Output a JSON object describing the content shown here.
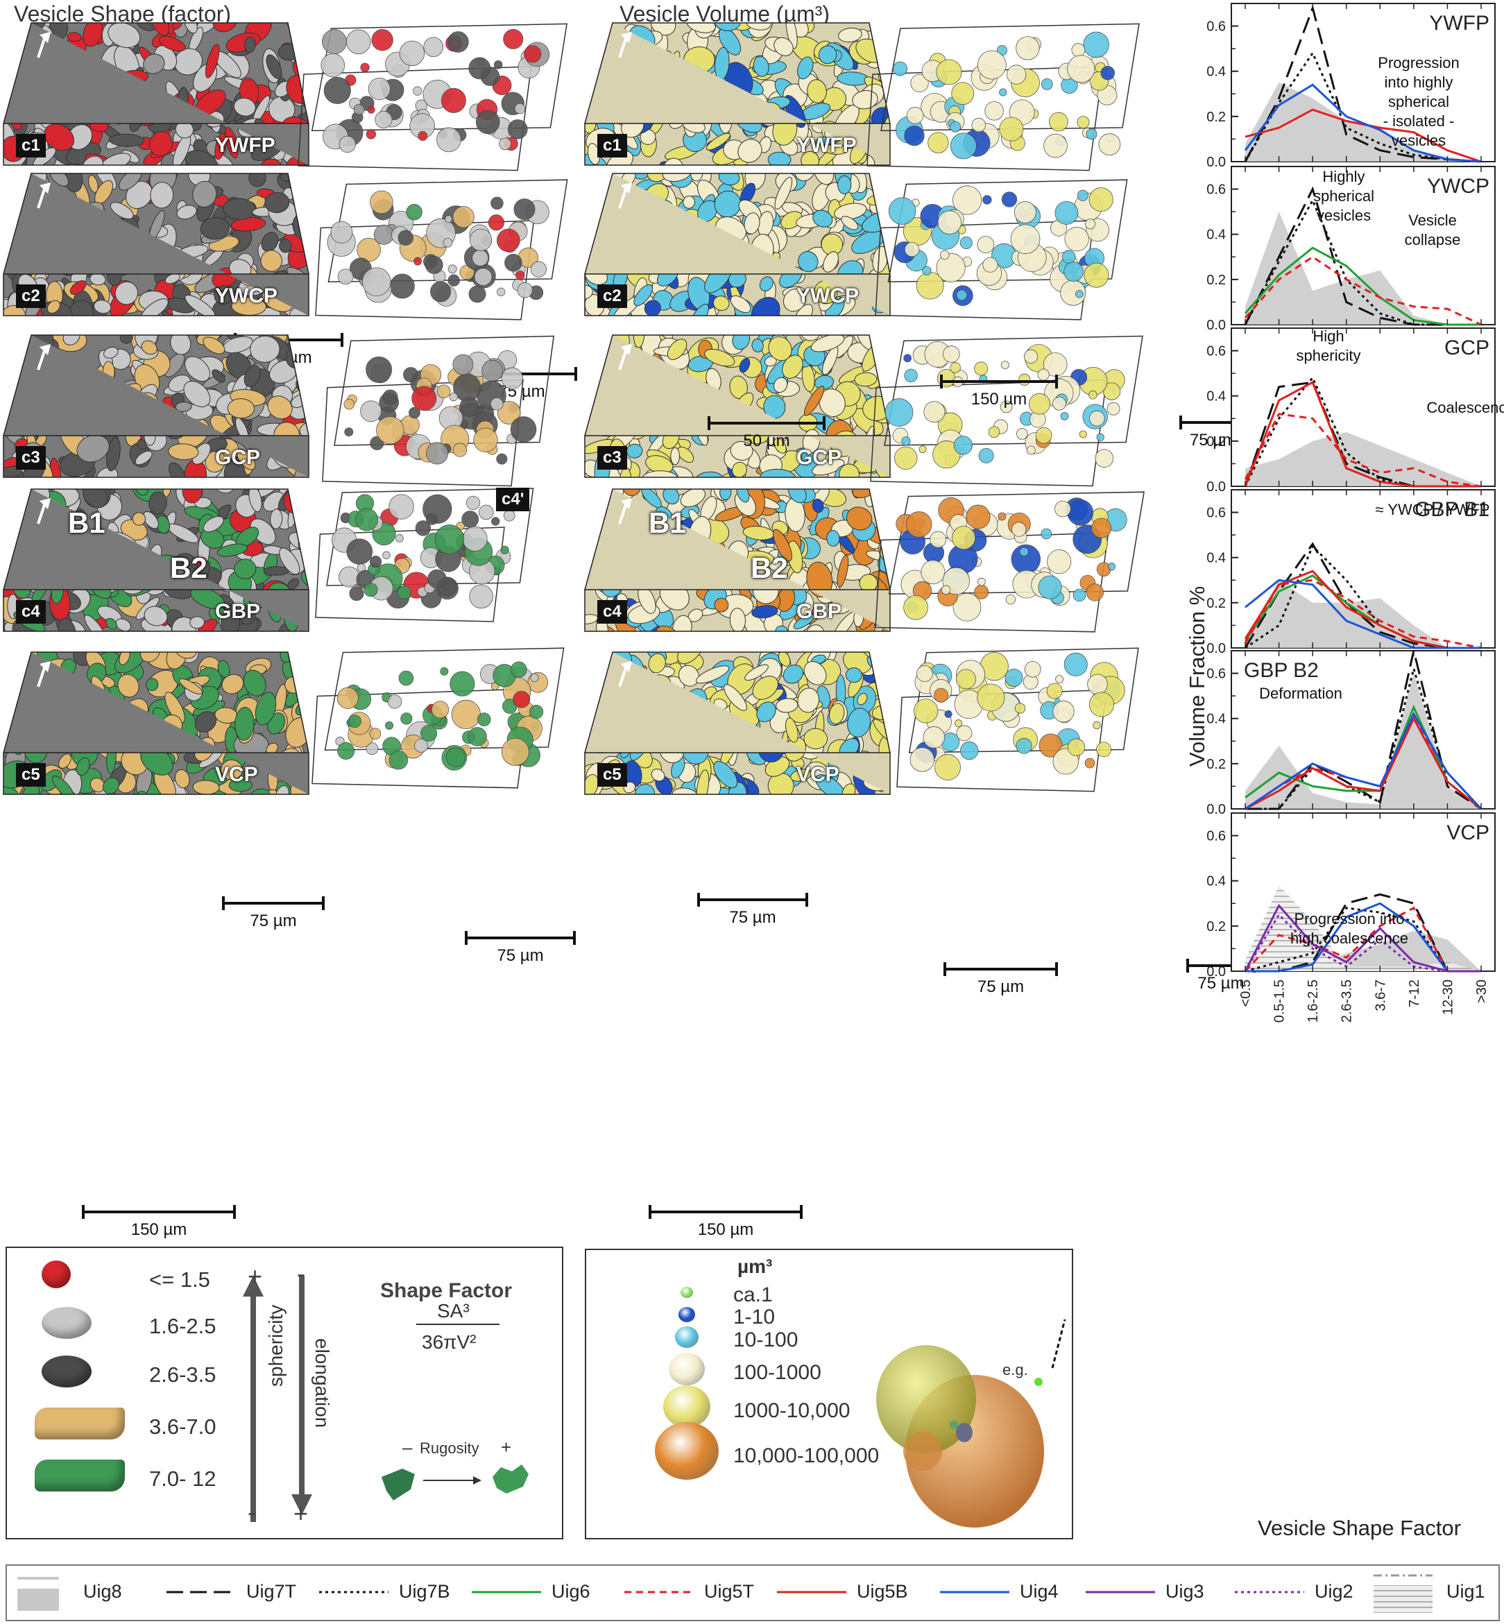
{
  "headers": {
    "shape": "Vesicle Shape (factor)",
    "volume": "Vesicle Volume (µm³)"
  },
  "rows": [
    {
      "id": "c1",
      "sample": "YWFP",
      "shape_zoom_scale": "75 µm",
      "volume_zoom_scale": "75 µm"
    },
    {
      "id": "c2",
      "sample": "YWCP",
      "shape_zoom_scale": "75 µm",
      "volume_zoom_scale": "75 µm"
    },
    {
      "id": "c3",
      "sample": "GCP",
      "shape_zoom_scale": "50 µm",
      "volume_zoom_scale": "75 µm"
    },
    {
      "id": "c4",
      "sample": "GBP",
      "shape_zoom_scale": "150 µm",
      "volume_zoom_scale": "75 µm",
      "zoom_tag": "c4'",
      "b1": "B1",
      "b2": "B2"
    },
    {
      "id": "c5",
      "sample": "VCP",
      "shape_zoom_scale": "75 µm",
      "volume_zoom_scale": "75 µm",
      "main_scale": "150 µm"
    }
  ],
  "shape_legend": {
    "title": "Shape Factor",
    "numerator": "SA³",
    "denominator": "36πV²",
    "classes": [
      {
        "label": "<= 1.5",
        "color": "#d8262e"
      },
      {
        "label": "1.6-2.5",
        "color": "#c8c8c8"
      },
      {
        "label": "2.6-3.5",
        "color": "#4a4a4a"
      },
      {
        "label": "3.6-7.0",
        "color": "#e0b870"
      },
      {
        "label": "7.0- 12",
        "color": "#3f9a56"
      }
    ],
    "sphericity": "sphericity",
    "elongation": "elongation",
    "rugosity": "Rugosity",
    "plus": "+",
    "minus": "-",
    "rug_minus": "–",
    "rug_plus": "+"
  },
  "volume_legend": {
    "unit": "µm³",
    "classes": [
      {
        "label": "ca.1",
        "color": "#8ee06a"
      },
      {
        "label": "1-10",
        "color": "#2050c0"
      },
      {
        "label": "10-100",
        "color": "#5ec6e0"
      },
      {
        "label": "100-1000",
        "color": "#f2eccc"
      },
      {
        "label": "1000-10,000",
        "color": "#e6e070"
      },
      {
        "label": "10,000-100,000",
        "color": "#e08830"
      }
    ],
    "eg": "e.g."
  },
  "chart_data": {
    "type": "line",
    "ylabel": "Volume Fraction %",
    "xlabel": "Vesicle Shape Factor",
    "categories": [
      "<0.5",
      "0.5-1.5",
      "1.6-2.5",
      "2.6-3.5",
      "3.6-7",
      "7-12",
      "12-30",
      ">30"
    ],
    "ylim": [
      0,
      0.7
    ],
    "yticks": [
      "0.0",
      "0.2",
      "0.4",
      "0.6"
    ],
    "panels": [
      {
        "title": "YWFP",
        "annotation": [
          "Progression",
          "into highly",
          "spherical",
          "- isolated -",
          "vesicles"
        ],
        "series": [
          {
            "name": "Uig8",
            "values": [
              0.08,
              0.35,
              0.28,
              0.18,
              0.15,
              0.05,
              0.02,
              0.0
            ]
          },
          {
            "name": "Uig7T",
            "values": [
              0.0,
              0.28,
              0.68,
              0.12,
              0.05,
              0.02,
              0.01,
              0.0
            ]
          },
          {
            "name": "Uig7B",
            "values": [
              0.0,
              0.26,
              0.48,
              0.15,
              0.08,
              0.03,
              0.01,
              0.0
            ]
          },
          {
            "name": "Uig5B",
            "values": [
              0.11,
              0.15,
              0.23,
              0.18,
              0.15,
              0.13,
              0.05,
              0.0
            ]
          },
          {
            "name": "Uig4",
            "values": [
              0.05,
              0.25,
              0.34,
              0.2,
              0.14,
              0.05,
              0.01,
              0.0
            ]
          }
        ]
      },
      {
        "title": "YWCP",
        "annotation": [
          "Highly",
          "spherical",
          "vesicles"
        ],
        "annotation2": [
          "Vesicle",
          "collapse"
        ],
        "series": [
          {
            "name": "Uig8",
            "values": [
              0.08,
              0.5,
              0.15,
              0.2,
              0.24,
              0.04,
              0.0,
              0.0
            ]
          },
          {
            "name": "Uig7T",
            "values": [
              0.0,
              0.3,
              0.6,
              0.1,
              0.03,
              0.0,
              0.0,
              0.0
            ]
          },
          {
            "name": "Uig7B",
            "values": [
              0.0,
              0.28,
              0.55,
              0.2,
              0.05,
              0.0,
              0.0,
              0.0
            ]
          },
          {
            "name": "Uig6",
            "values": [
              0.05,
              0.22,
              0.34,
              0.26,
              0.12,
              0.02,
              0.0,
              0.0
            ]
          },
          {
            "name": "Uig5T",
            "values": [
              0.03,
              0.2,
              0.3,
              0.2,
              0.12,
              0.08,
              0.07,
              0.0
            ]
          }
        ]
      },
      {
        "title": "GCP",
        "annotation": [
          "High",
          "sphericity"
        ],
        "annotation2": [
          "Coalescence"
        ],
        "series": [
          {
            "name": "Uig8",
            "values": [
              0.08,
              0.12,
              0.2,
              0.24,
              0.18,
              0.12,
              0.06,
              0.0
            ]
          },
          {
            "name": "Uig7T",
            "values": [
              0.0,
              0.44,
              0.46,
              0.1,
              0.04,
              0.0,
              0.0,
              0.0
            ]
          },
          {
            "name": "Uig7B",
            "values": [
              0.0,
              0.3,
              0.48,
              0.15,
              0.03,
              0.0,
              0.0,
              0.0
            ]
          },
          {
            "name": "Uig5T",
            "values": [
              0.03,
              0.32,
              0.3,
              0.12,
              0.06,
              0.08,
              0.02,
              0.0
            ]
          },
          {
            "name": "Uig5B",
            "values": [
              0.0,
              0.38,
              0.46,
              0.08,
              0.02,
              0.0,
              0.0,
              0.0
            ]
          }
        ]
      },
      {
        "title": "GBP B1",
        "annotation": [
          "≈ YWCP / YWFP"
        ],
        "series": [
          {
            "name": "Uig8",
            "values": [
              0.04,
              0.3,
              0.2,
              0.2,
              0.22,
              0.1,
              0.0,
              0.0
            ]
          },
          {
            "name": "Uig7T",
            "values": [
              0.0,
              0.25,
              0.46,
              0.2,
              0.07,
              0.02,
              0.0,
              0.0
            ]
          },
          {
            "name": "Uig7B",
            "values": [
              0.0,
              0.1,
              0.45,
              0.3,
              0.1,
              0.03,
              0.0,
              0.0
            ]
          },
          {
            "name": "Uig6",
            "values": [
              0.03,
              0.25,
              0.32,
              0.2,
              0.1,
              0.03,
              0.0,
              0.0
            ]
          },
          {
            "name": "Uig5T",
            "values": [
              0.02,
              0.28,
              0.3,
              0.22,
              0.12,
              0.05,
              0.03,
              0.0
            ]
          },
          {
            "name": "Uig5B",
            "values": [
              0.04,
              0.28,
              0.34,
              0.18,
              0.1,
              0.03,
              0.0,
              0.0
            ]
          },
          {
            "name": "Uig4",
            "values": [
              0.18,
              0.3,
              0.28,
              0.12,
              0.06,
              0.0,
              0.0,
              0.0
            ]
          }
        ]
      },
      {
        "title": "GBP B2",
        "annotation": [
          "Deformation"
        ],
        "series": [
          {
            "name": "Uig8",
            "values": [
              0.08,
              0.28,
              0.07,
              0.03,
              0.02,
              0.6,
              0.1,
              0.0
            ]
          },
          {
            "name": "Uig7T",
            "values": [
              0.0,
              0.0,
              0.2,
              0.12,
              0.03,
              0.7,
              0.1,
              0.0
            ]
          },
          {
            "name": "Uig7B",
            "values": [
              0.0,
              0.0,
              0.18,
              0.1,
              0.03,
              0.62,
              0.12,
              0.0
            ]
          },
          {
            "name": "Uig6",
            "values": [
              0.05,
              0.16,
              0.1,
              0.08,
              0.08,
              0.45,
              0.12,
              0.0
            ]
          },
          {
            "name": "Uig5T",
            "values": [
              0.0,
              0.1,
              0.18,
              0.14,
              0.1,
              0.4,
              0.16,
              0.0
            ]
          },
          {
            "name": "Uig5B",
            "values": [
              0.0,
              0.08,
              0.18,
              0.1,
              0.08,
              0.4,
              0.12,
              0.0
            ]
          },
          {
            "name": "Uig4",
            "values": [
              0.0,
              0.1,
              0.2,
              0.14,
              0.1,
              0.42,
              0.16,
              0.0
            ]
          }
        ]
      },
      {
        "title": "VCP",
        "annotation": [
          "Progression into",
          "high coalescence"
        ],
        "series": [
          {
            "name": "Uig8",
            "values": [
              0.0,
              0.05,
              0.02,
              0.08,
              0.12,
              0.18,
              0.14,
              0.0
            ]
          },
          {
            "name": "Uig1",
            "values": [
              0.05,
              0.38,
              0.22,
              0.02,
              0.02,
              0.02,
              0.04,
              0.0
            ]
          },
          {
            "name": "Uig7T",
            "values": [
              0.0,
              0.0,
              0.04,
              0.3,
              0.34,
              0.3,
              0.0,
              0.0
            ]
          },
          {
            "name": "Uig7B",
            "values": [
              0.0,
              0.04,
              0.08,
              0.28,
              0.26,
              0.22,
              0.0,
              0.0
            ]
          },
          {
            "name": "Uig5T",
            "values": [
              0.0,
              0.16,
              0.12,
              0.06,
              0.2,
              0.28,
              0.0,
              0.0
            ]
          },
          {
            "name": "Uig4",
            "values": [
              0.0,
              0.0,
              0.03,
              0.24,
              0.3,
              0.2,
              0.0,
              0.0
            ]
          },
          {
            "name": "Uig3",
            "values": [
              0.0,
              0.29,
              0.12,
              0.04,
              0.19,
              0.04,
              0.0,
              0.0
            ]
          },
          {
            "name": "Uig2",
            "values": [
              0.0,
              0.25,
              0.1,
              0.02,
              0.14,
              0.02,
              0.0,
              0.0
            ]
          }
        ]
      }
    ]
  },
  "series_styles": {
    "Uig8": {
      "color": "#c8c8c8",
      "dash": "area"
    },
    "Uig7T": {
      "color": "#111111",
      "dash": "24 10"
    },
    "Uig7B": {
      "color": "#111111",
      "dash": "4 5"
    },
    "Uig6": {
      "color": "#22a030",
      "dash": ""
    },
    "Uig5T": {
      "color": "#e0201e",
      "dash": "10 7"
    },
    "Uig5B": {
      "color": "#e0201e",
      "dash": ""
    },
    "Uig4": {
      "color": "#1a55d8",
      "dash": ""
    },
    "Uig3": {
      "color": "#7a2aa8",
      "dash": ""
    },
    "Uig2": {
      "color": "#7a2aa8",
      "dash": "4 5"
    },
    "Uig1": {
      "color": "#aaaaaa",
      "dash": "hatch"
    }
  },
  "bottom_legend": [
    "Uig8",
    "Uig7T",
    "Uig7B",
    "Uig6",
    "Uig5T",
    "Uig5B",
    "Uig4",
    "Uig3",
    "Uig2",
    "Uig1"
  ]
}
